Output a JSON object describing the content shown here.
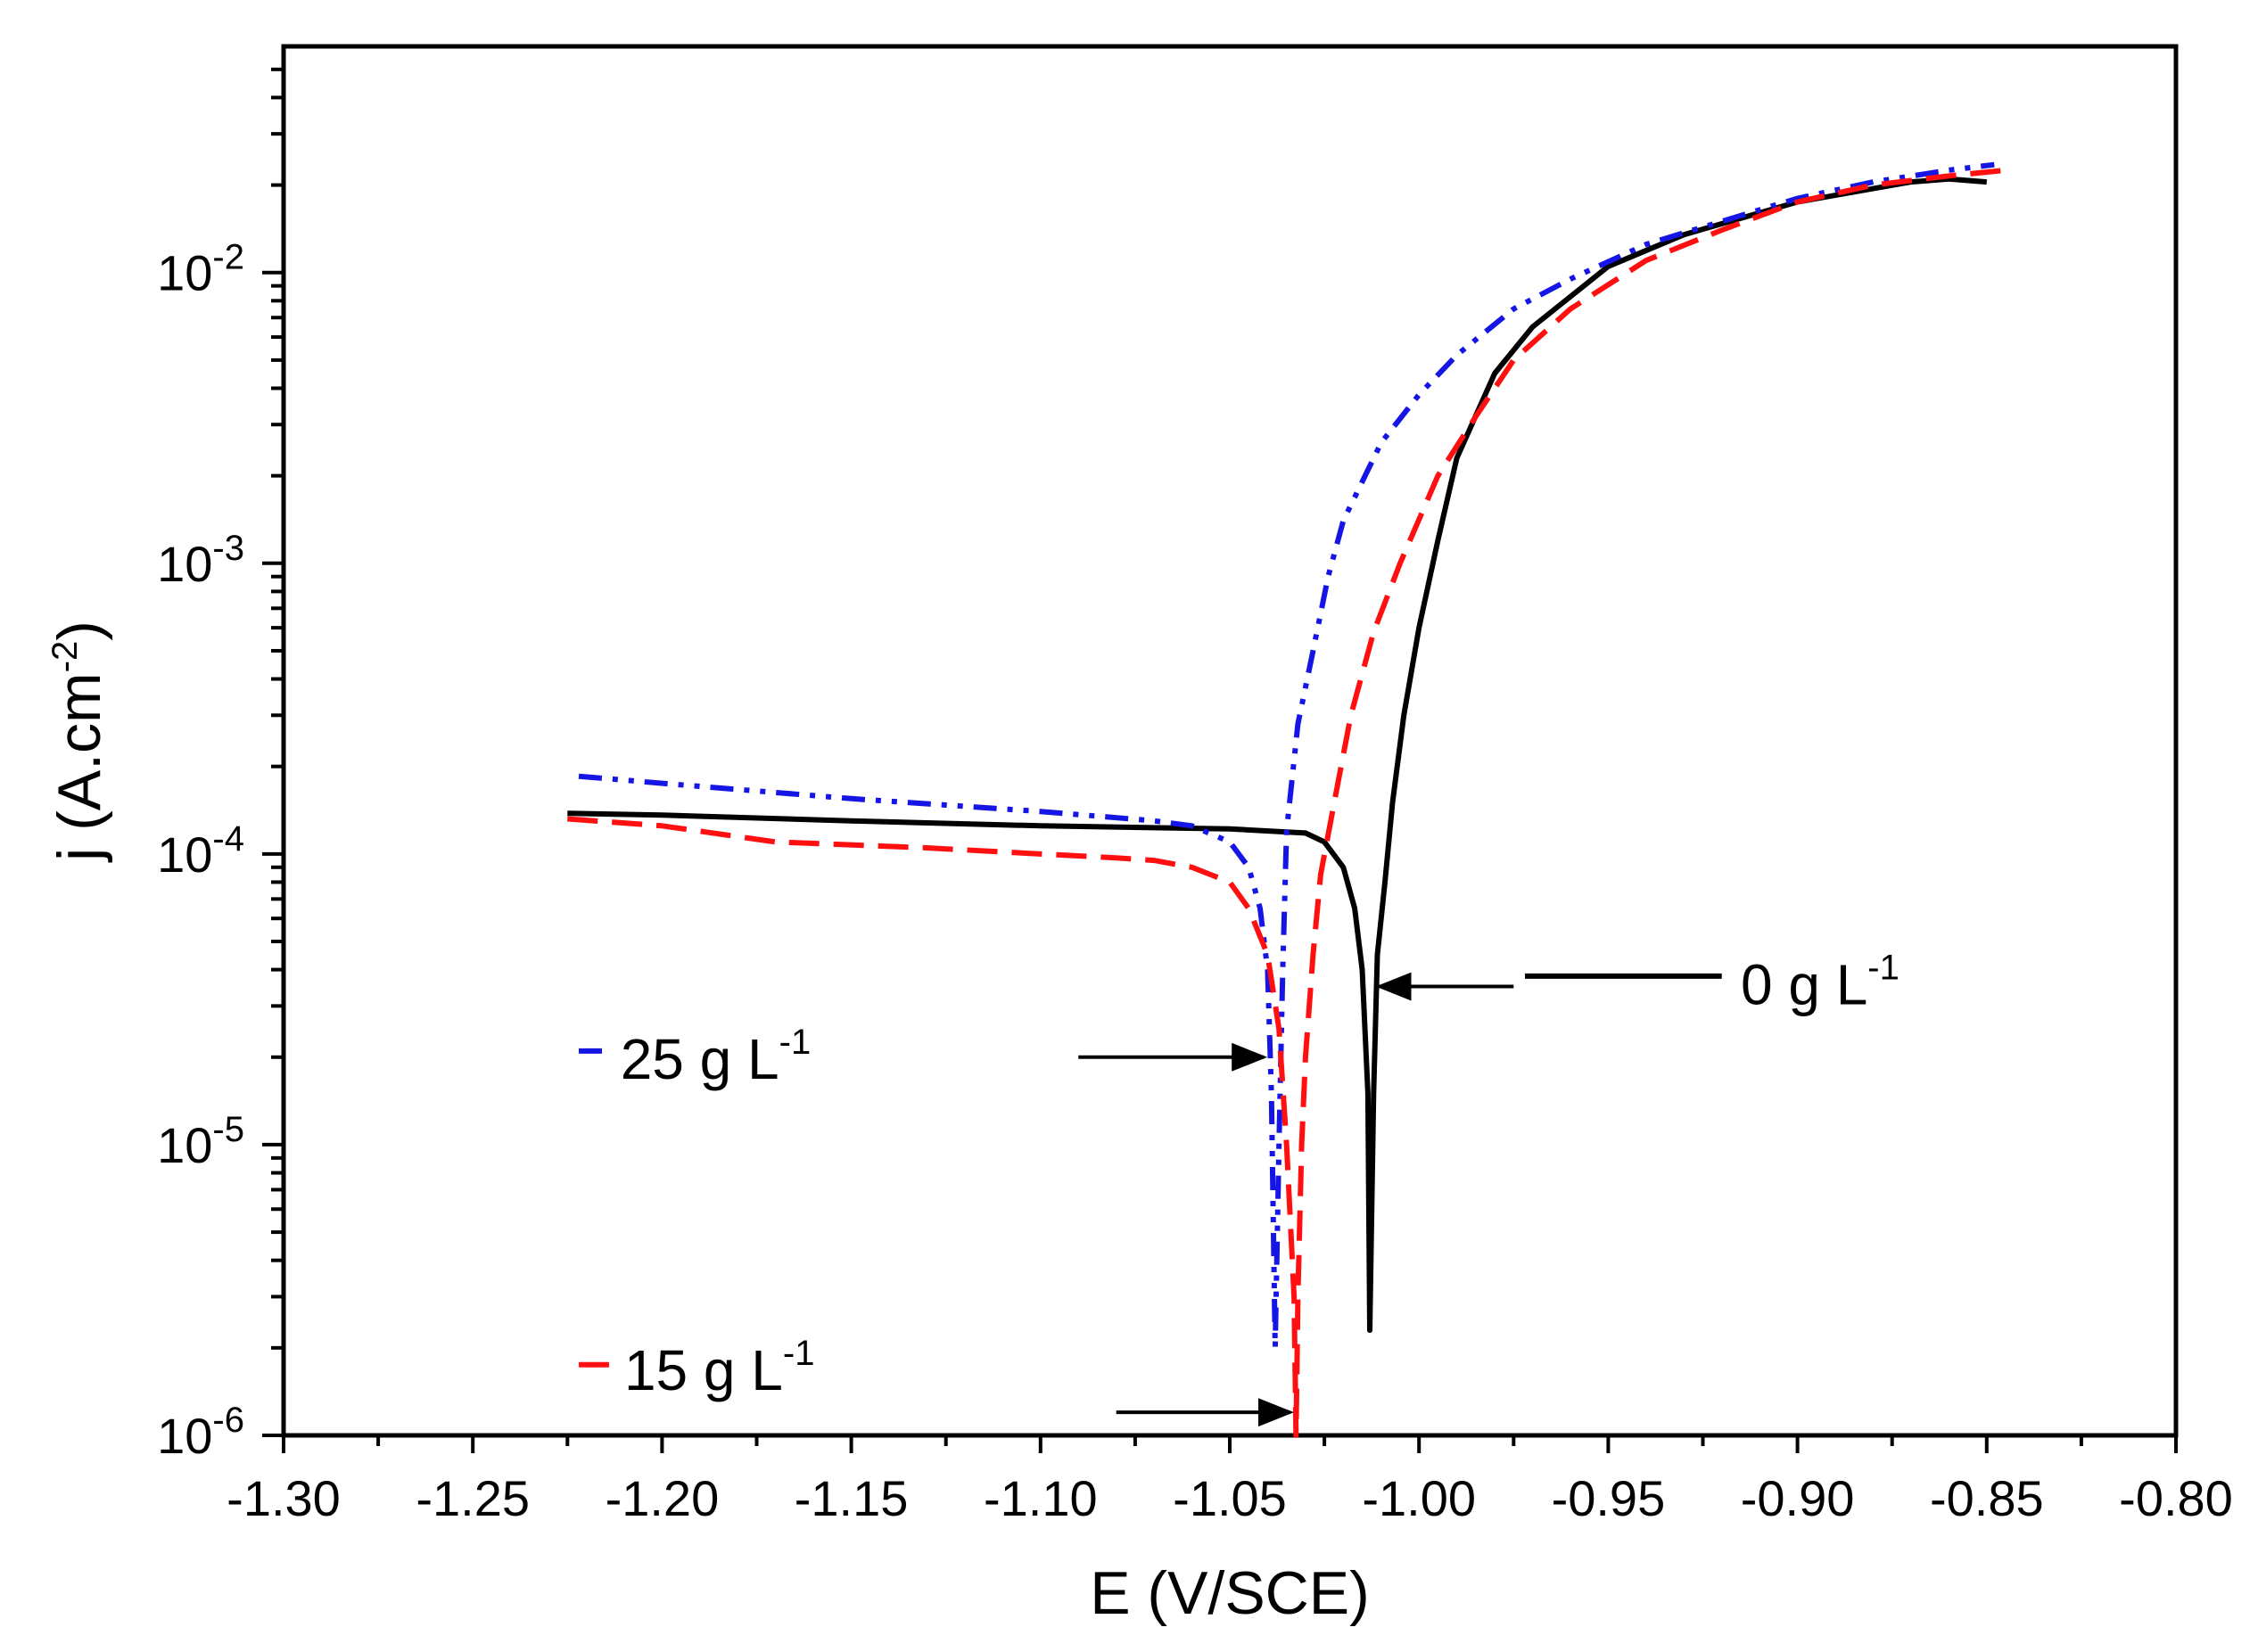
{
  "chart_data": {
    "type": "line",
    "title": "",
    "xlabel": "E (V/SCE)",
    "ylabel_prefix": "j (A.cm",
    "ylabel_sup": "-2",
    "ylabel_suffix": ")",
    "xlim": [
      -1.3,
      -0.8
    ],
    "ylim": [
      1e-06,
      0.06
    ],
    "yscale": "log",
    "x_ticks": [
      -1.3,
      -1.25,
      -1.2,
      -1.15,
      -1.1,
      -1.05,
      -1.0,
      -0.95,
      -0.9,
      -0.85,
      -0.8
    ],
    "x_tick_labels": [
      "-1.30",
      "-1.25",
      "-1.20",
      "-1.15",
      "-1.10",
      "-1.05",
      "-1.00",
      "-0.95",
      "-0.90",
      "-0.85",
      "-0.80"
    ],
    "y_ticks": [
      {
        "value": 1e-06,
        "base": "10",
        "exp": "-6"
      },
      {
        "value": 1e-05,
        "base": "10",
        "exp": "-5"
      },
      {
        "value": 0.0001,
        "base": "10",
        "exp": "-4"
      },
      {
        "value": 0.001,
        "base": "10",
        "exp": "-3"
      },
      {
        "value": 0.01,
        "base": "10",
        "exp": "-2"
      }
    ],
    "series": [
      {
        "name": "0 g L-1",
        "label_main": "0 g L",
        "label_sup": "-1",
        "color": "#000000",
        "dash": "solid",
        "points": [
          [
            -1.225,
            0.000138
          ],
          [
            -1.2,
            0.000136
          ],
          [
            -1.15,
            0.00013
          ],
          [
            -1.1,
            0.000125
          ],
          [
            -1.05,
            0.000122
          ],
          [
            -1.03,
            0.000118
          ],
          [
            -1.025,
            0.00011
          ],
          [
            -1.02,
            9e-05
          ],
          [
            -1.017,
            6.5e-05
          ],
          [
            -1.015,
            4e-05
          ],
          [
            -1.0135,
            1.5e-05
          ],
          [
            -1.013,
            2.3e-06
          ],
          [
            -1.012,
            1.5e-05
          ],
          [
            -1.011,
            4.5e-05
          ],
          [
            -1.009,
            8e-05
          ],
          [
            -1.007,
            0.00015
          ],
          [
            -1.004,
            0.0003
          ],
          [
            -1.0,
            0.0006
          ],
          [
            -0.995,
            0.0012
          ],
          [
            -0.99,
            0.0023
          ],
          [
            -0.98,
            0.0045
          ],
          [
            -0.97,
            0.0065
          ],
          [
            -0.95,
            0.0105
          ],
          [
            -0.93,
            0.0135
          ],
          [
            -0.9,
            0.0175
          ],
          [
            -0.87,
            0.0205
          ],
          [
            -0.86,
            0.021
          ],
          [
            -0.85,
            0.0205
          ]
        ]
      },
      {
        "name": "25 g L-1",
        "label_main": "25 g L",
        "label_sup": "-1",
        "color": "#1515e6",
        "dash": "dashdotdot",
        "points": [
          [
            -1.222,
            0.000185
          ],
          [
            -1.2,
            0.000175
          ],
          [
            -1.15,
            0.000155
          ],
          [
            -1.1,
            0.00014
          ],
          [
            -1.07,
            0.00013
          ],
          [
            -1.06,
            0.000125
          ],
          [
            -1.05,
            0.00011
          ],
          [
            -1.045,
            9e-05
          ],
          [
            -1.042,
            6.5e-05
          ],
          [
            -1.04,
            4e-05
          ],
          [
            -1.039,
            1.5e-05
          ],
          [
            -1.038,
            2e-06
          ],
          [
            -1.037,
            1e-05
          ],
          [
            -1.036,
            4e-05
          ],
          [
            -1.035,
            0.00012
          ],
          [
            -1.032,
            0.00028
          ],
          [
            -1.028,
            0.0005
          ],
          [
            -1.024,
            0.0009
          ],
          [
            -1.02,
            0.0014
          ],
          [
            -1.01,
            0.0026
          ],
          [
            -1.0,
            0.0038
          ],
          [
            -0.99,
            0.0052
          ],
          [
            -0.975,
            0.0075
          ],
          [
            -0.96,
            0.0095
          ],
          [
            -0.94,
            0.0125
          ],
          [
            -0.92,
            0.015
          ],
          [
            -0.9,
            0.018
          ],
          [
            -0.88,
            0.0205
          ],
          [
            -0.86,
            0.0225
          ],
          [
            -0.848,
            0.0235
          ]
        ]
      },
      {
        "name": "15 g L-1",
        "label_main": "15 g L",
        "label_sup": "-1",
        "color": "#ff0f0f",
        "dash": "dashed",
        "points": [
          [
            -1.225,
            0.000132
          ],
          [
            -1.2,
            0.000125
          ],
          [
            -1.17,
            0.00011
          ],
          [
            -1.13,
            0.000105
          ],
          [
            -1.1,
            0.0001
          ],
          [
            -1.08,
            9.7e-05
          ],
          [
            -1.07,
            9.5e-05
          ],
          [
            -1.06,
            9e-05
          ],
          [
            -1.05,
            8e-05
          ],
          [
            -1.045,
            6.5e-05
          ],
          [
            -1.04,
            4.5e-05
          ],
          [
            -1.037,
            2.5e-05
          ],
          [
            -1.035,
            1e-05
          ],
          [
            -1.033,
            3e-06
          ],
          [
            -1.0325,
            1e-06
          ],
          [
            -1.032,
            3e-06
          ],
          [
            -1.031,
            1e-05
          ],
          [
            -1.03,
            2e-05
          ],
          [
            -1.028,
            4.5e-05
          ],
          [
            -1.026,
            8.5e-05
          ],
          [
            -1.022,
            0.00016
          ],
          [
            -1.018,
            0.0003
          ],
          [
            -1.012,
            0.00058
          ],
          [
            -1.005,
            0.001
          ],
          [
            -0.995,
            0.002
          ],
          [
            -0.985,
            0.0032
          ],
          [
            -0.975,
            0.005
          ],
          [
            -0.96,
            0.0075
          ],
          [
            -0.94,
            0.011
          ],
          [
            -0.92,
            0.014
          ],
          [
            -0.9,
            0.0175
          ],
          [
            -0.88,
            0.02
          ],
          [
            -0.86,
            0.0215
          ],
          [
            -0.845,
            0.0225
          ]
        ]
      }
    ],
    "annotations": [
      {
        "series": 0,
        "label_x": -0.915,
        "label_y": 3.6e-05,
        "legend_line": [
          -0.972,
          -0.92
        ],
        "legend_y": 3.8e-05,
        "arrow_from": [
          -0.975,
          3.5e-05
        ],
        "arrow_to": [
          -1.0105,
          3.5e-05
        ]
      },
      {
        "series": 1,
        "label_x": -1.211,
        "label_y": 2e-05,
        "legend_line": [
          -1.222,
          -1.215
        ],
        "legend_y": 2.1e-05,
        "arrow_from": [
          -1.09,
          2e-05
        ],
        "arrow_to": [
          -1.041,
          2e-05
        ]
      },
      {
        "series": 2,
        "label_x": -1.21,
        "label_y": 1.7e-06,
        "legend_line": [
          -1.222,
          -1.214
        ],
        "legend_y": 1.75e-06,
        "arrow_from": [
          -1.08,
          1.2e-06
        ],
        "arrow_to": [
          -1.034,
          1.2e-06
        ]
      }
    ]
  }
}
